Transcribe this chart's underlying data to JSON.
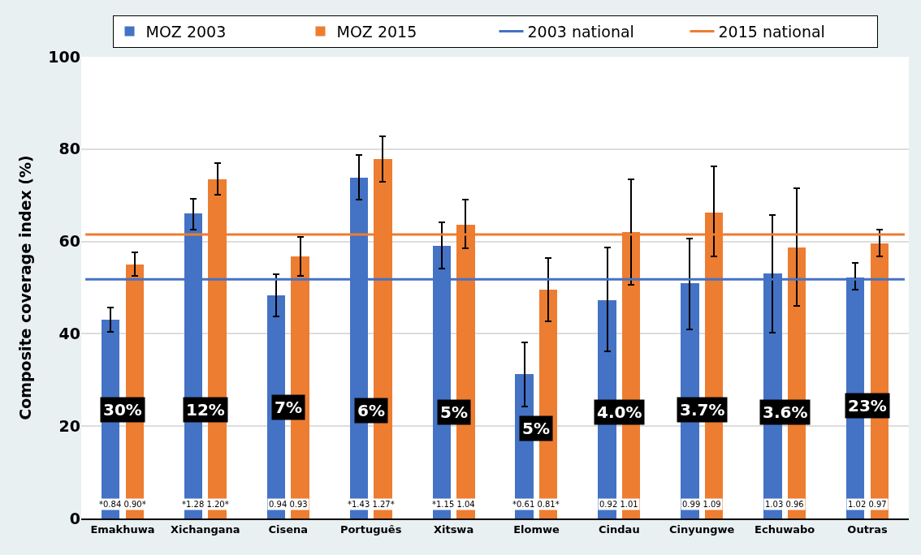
{
  "chart_data": {
    "type": "bar",
    "ylabel": "Composite coverage index (%)",
    "categories": [
      "Emakhuwa",
      "Xichangana",
      "Cisena",
      "Português",
      "Xitswa",
      "Elomwe",
      "Cindau",
      "Cinyungwe",
      "Echuwabo",
      "Outras"
    ],
    "series": [
      {
        "name": "MOZ 2003",
        "color": "#4472c4",
        "values": [
          43,
          66,
          48.3,
          73.8,
          59,
          31.2,
          47.3,
          51,
          53,
          52.2
        ],
        "errors": [
          [
            40.5,
            45.7
          ],
          [
            62.5,
            69.3
          ],
          [
            43.8,
            52.9
          ],
          [
            69,
            78.8
          ],
          [
            54.2,
            64.2
          ],
          [
            24.3,
            38.2
          ],
          [
            36.2,
            58.7
          ],
          [
            41,
            60.7
          ],
          [
            40.3,
            65.7
          ],
          [
            49.5,
            55.4
          ]
        ]
      },
      {
        "name": "MOZ 2015",
        "color": "#ed7d31",
        "values": [
          55,
          73.5,
          56.8,
          77.8,
          63.7,
          49.5,
          62,
          66.3,
          58.7,
          59.6
        ],
        "errors": [
          [
            52.5,
            57.7
          ],
          [
            70.2,
            77
          ],
          [
            52.5,
            61
          ],
          [
            73,
            82.7
          ],
          [
            58.5,
            69
          ],
          [
            42.7,
            56.5
          ],
          [
            50.7,
            73.4
          ],
          [
            56.7,
            76.2
          ],
          [
            46,
            71.5
          ],
          [
            56.7,
            62.6
          ]
        ]
      }
    ],
    "ref_lines": [
      {
        "axis": "y",
        "value": 51.8,
        "label": "2003 national",
        "color": "#4472c4",
        "line_style": "solid"
      },
      {
        "axis": "y",
        "value": 61.5,
        "label": "2015 national",
        "color": "#ed7d31",
        "line_style": "solid"
      }
    ],
    "annotations": [
      {
        "text": "30%",
        "x": "Emakhuwa",
        "y": 23.5
      },
      {
        "text": "12%",
        "x": "Xichangana",
        "y": 23.5
      },
      {
        "text": "7%",
        "x": "Cisena",
        "y": 24
      },
      {
        "text": "6%",
        "x": "Português",
        "y": 23.3
      },
      {
        "text": "5%",
        "x": "Xitswa",
        "y": 23
      },
      {
        "text": "5%",
        "x": "Elomwe",
        "y": 19.5
      },
      {
        "text": "4.0%",
        "x": "Cindau",
        "y": 23
      },
      {
        "text": "3.7%",
        "x": "Cinyungwe",
        "y": 23.5
      },
      {
        "text": "3.6%",
        "x": "Echuwabo",
        "y": 23
      },
      {
        "text": "23%",
        "x": "Outras",
        "y": 24.5
      },
      {
        "text": "*0.84 0.90*",
        "x": "Emakhuwa",
        "y": 3
      },
      {
        "text": "*1.28 1.20*",
        "x": "Xichangana",
        "y": 3
      },
      {
        "text": "0.94 0.93",
        "x": "Cisena",
        "y": 3
      },
      {
        "text": "*1.43 1.27*",
        "x": "Português",
        "y": 3
      },
      {
        "text": "*1.15 1.04",
        "x": "Xitswa",
        "y": 3
      },
      {
        "text": "*0.61 0.81*",
        "x": "Elomwe",
        "y": 3
      },
      {
        "text": "0.92 1.01",
        "x": "Cindau",
        "y": 3
      },
      {
        "text": "0.99 1.09",
        "x": "Cinyungwe",
        "y": 3
      },
      {
        "text": "1.03 0.96",
        "x": "Echuwabo",
        "y": 3
      },
      {
        "text": "1.02 0.97",
        "x": "Outras",
        "y": 3
      }
    ],
    "ylim": [
      0,
      100
    ],
    "yticks": [
      0,
      20,
      40,
      60,
      80,
      100
    ],
    "grid": "y",
    "legend": "top"
  }
}
